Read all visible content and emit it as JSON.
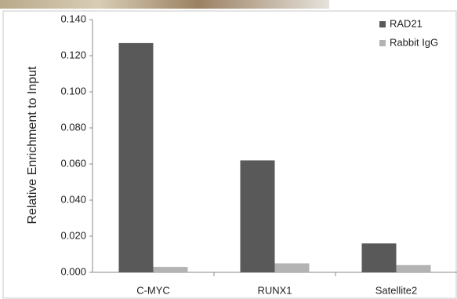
{
  "chart_data": {
    "type": "bar",
    "categories": [
      "C-MYC",
      "RUNX1",
      "Satellite2"
    ],
    "series": [
      {
        "name": "RAD21",
        "color": "#595959",
        "values": [
          0.127,
          0.062,
          0.016
        ]
      },
      {
        "name": "Rabbit IgG",
        "color": "#b3b3b3",
        "values": [
          0.003,
          0.005,
          0.004
        ]
      }
    ],
    "y_label": "Relative Enrichment to Input",
    "ylim": [
      0,
      0.14
    ],
    "yticks": [
      {
        "value": 0,
        "label": "0.000"
      },
      {
        "value": 0.02,
        "label": "0.020"
      },
      {
        "value": 0.04,
        "label": "0.040"
      },
      {
        "value": 0.06,
        "label": "0.060"
      },
      {
        "value": 0.08,
        "label": "0.080"
      },
      {
        "value": 0.1,
        "label": "0.100"
      },
      {
        "value": 0.12,
        "label": "0.120"
      },
      {
        "value": 0.14,
        "label": "0.140"
      }
    ],
    "legend": "top-right",
    "grid": false
  }
}
